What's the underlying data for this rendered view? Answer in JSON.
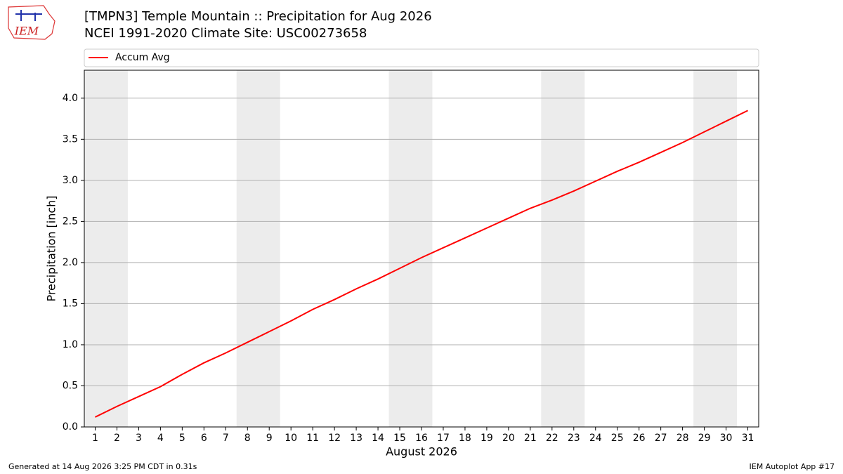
{
  "logo_text": "IEM",
  "chart_data": {
    "type": "line",
    "title": "[TMPN3] Temple Mountain :: Precipitation for Aug 2026",
    "subtitle": "NCEI 1991-2020 Climate Site: USC00273658",
    "x_label": "August 2026",
    "y_label": "Precipitation [inch]",
    "x": [
      1,
      2,
      3,
      4,
      5,
      6,
      7,
      8,
      9,
      10,
      11,
      12,
      13,
      14,
      15,
      16,
      17,
      18,
      19,
      20,
      21,
      22,
      23,
      24,
      25,
      26,
      27,
      28,
      29,
      30,
      31
    ],
    "series": [
      {
        "name": "Accum Avg",
        "color": "#ff0000",
        "values": [
          0.12,
          0.25,
          0.37,
          0.49,
          0.64,
          0.78,
          0.9,
          1.03,
          1.16,
          1.29,
          1.43,
          1.55,
          1.68,
          1.8,
          1.93,
          2.06,
          2.18,
          2.3,
          2.42,
          2.54,
          2.66,
          2.76,
          2.87,
          2.99,
          3.11,
          3.22,
          3.34,
          3.46,
          3.59,
          3.72,
          3.85
        ]
      }
    ],
    "xlim": [
      0.5,
      31.5
    ],
    "xticks": [
      1,
      2,
      3,
      4,
      5,
      6,
      7,
      8,
      9,
      10,
      11,
      12,
      13,
      14,
      15,
      16,
      17,
      18,
      19,
      20,
      21,
      22,
      23,
      24,
      25,
      26,
      27,
      28,
      29,
      30,
      31
    ],
    "ylim": [
      0,
      4.34
    ],
    "yticks": [
      {
        "value": 0,
        "label": "0.0"
      },
      0.5,
      {
        "value": 1,
        "label": "1.0"
      },
      1.5,
      {
        "value": 2,
        "label": "2.0"
      },
      2.5,
      {
        "value": 3,
        "label": "3.0"
      },
      3.5,
      {
        "value": 4,
        "label": "4.0"
      }
    ],
    "shaded_ranges": [
      [
        0.5,
        2.5
      ],
      [
        7.5,
        9.5
      ],
      [
        14.5,
        16.5
      ],
      [
        21.5,
        23.5
      ],
      [
        28.5,
        30.5
      ]
    ],
    "shade_color": "#ececec",
    "grid": true,
    "legend": "top",
    "footer_left": "Generated at 14 Aug 2026 3:25 PM CDT in 0.31s",
    "footer_right": "IEM Autoplot App #17"
  }
}
